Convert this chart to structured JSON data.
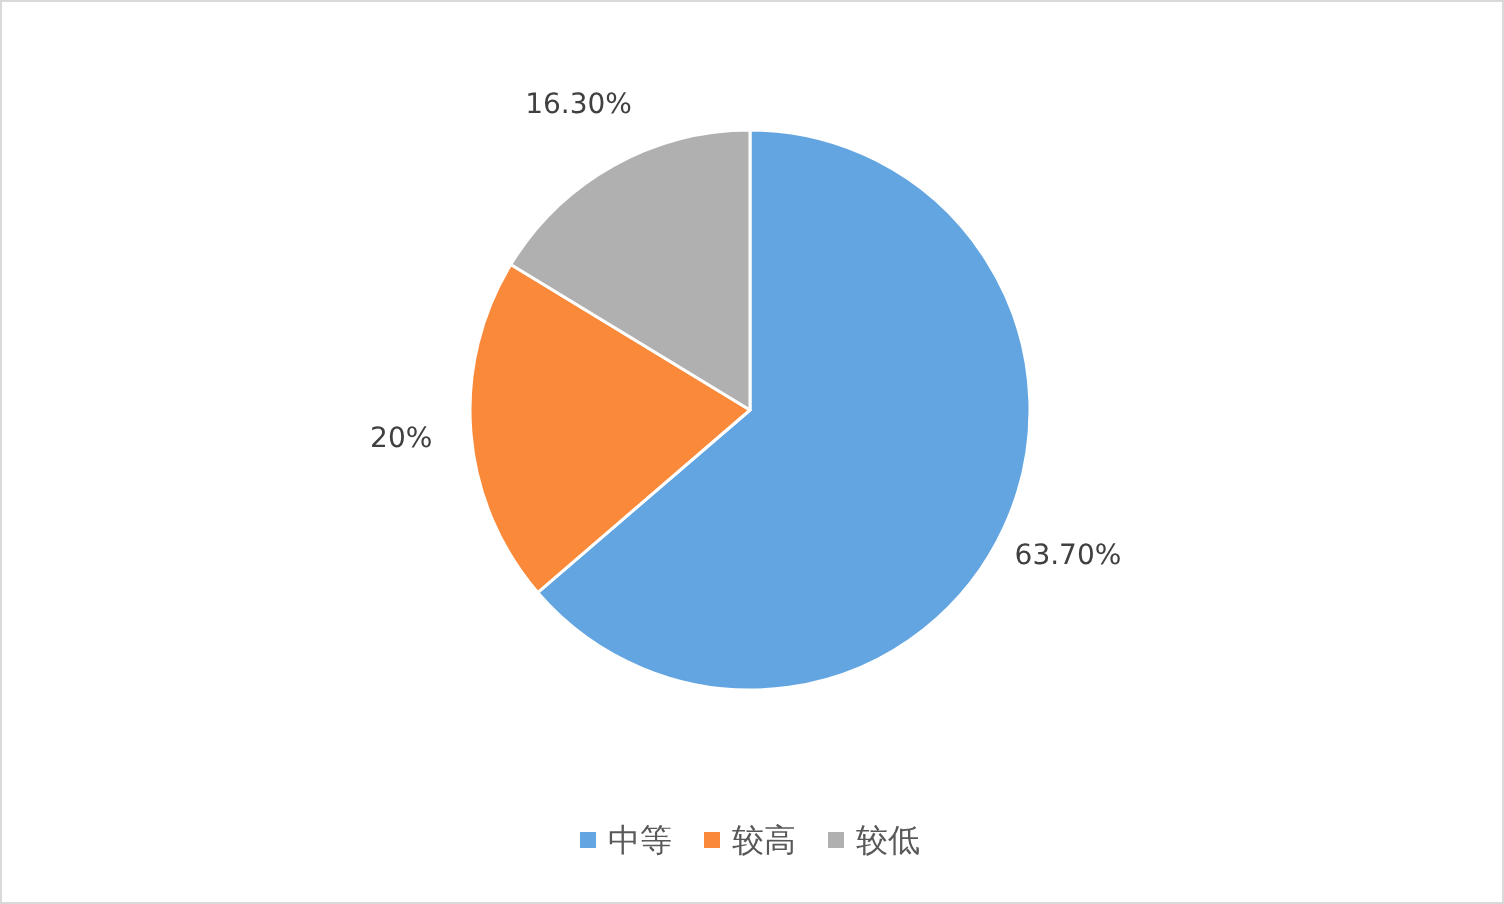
{
  "chart_data": {
    "type": "pie",
    "categories": [
      "中等",
      "较高",
      "较低"
    ],
    "values": [
      63.7,
      20,
      16.3
    ],
    "colors": [
      "#62a5e1",
      "#fa8a39",
      "#b0b0b0"
    ],
    "value_labels": [
      "63.70%",
      "20%",
      "16.30%"
    ],
    "legend": "bottom"
  }
}
